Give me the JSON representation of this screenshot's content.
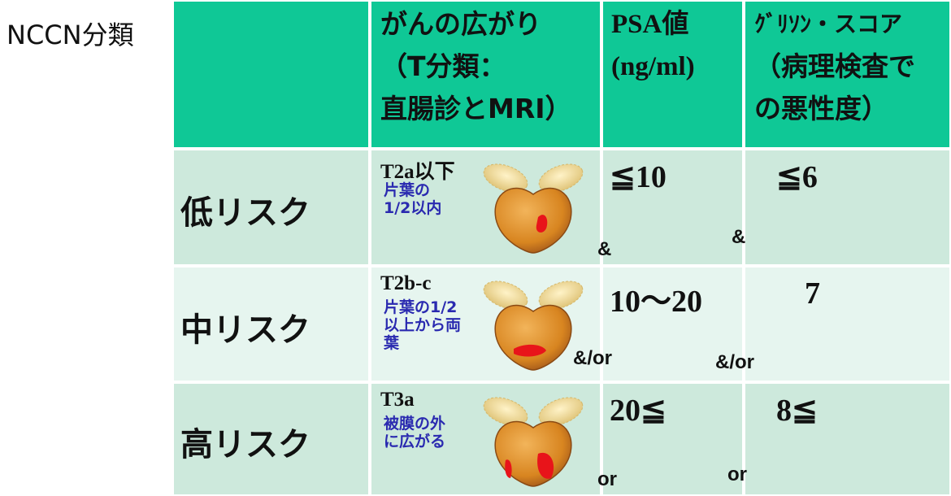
{
  "label": "NCCN分類",
  "table": {
    "headers": [
      [
        "がんの広がり",
        "（T分類：",
        "直腸診とMRI）"
      ],
      [
        "PSA値",
        "(ng/ml)"
      ],
      [
        "ｸﾞﾘｿﾝ・スコア",
        "（病理検査で",
        "の悪性度）"
      ]
    ],
    "rows": [
      {
        "risk": "低リスク",
        "t_stage": "T2a以下",
        "t_desc": [
          "片葉の",
          "1/2以内"
        ],
        "psa": "≦10",
        "gleason": "≦6",
        "connectors": [
          "&",
          "&"
        ]
      },
      {
        "risk": "中リスク",
        "t_stage": "T2b-c",
        "t_desc": [
          "片葉の1/2",
          "以上から両",
          "葉"
        ],
        "psa": "10〜20",
        "gleason": "7",
        "connectors": [
          "&/or",
          "&/or"
        ]
      },
      {
        "risk": "高リスク",
        "t_stage": "T3a",
        "t_desc": [
          "被膜の外",
          "に広がる"
        ],
        "psa": "20≦",
        "gleason": "8≦",
        "connectors": [
          "or",
          "or"
        ]
      }
    ]
  }
}
